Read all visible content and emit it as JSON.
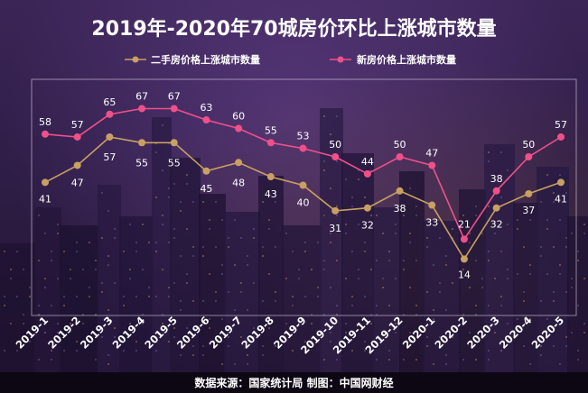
{
  "title": "2019年-2020年70城房价环比上涨城市数量",
  "source_text": "数据来源：国家统计局    制图：中国网财经",
  "chart_data": {
    "type": "line",
    "title": "2019年-2020年70城房价环比上涨城市数量",
    "categories": [
      "2019-1",
      "2019-2",
      "2019-3",
      "2019-4",
      "2019-5",
      "2019-6",
      "2019-7",
      "2019-8",
      "2019-9",
      "2019-10",
      "2019-11",
      "2019-12",
      "2020-1",
      "2020-2",
      "2020-3",
      "2020-4",
      "2020-5"
    ],
    "series": [
      {
        "name": "二手房价格上涨城市数量",
        "color": "#c9a062",
        "values": [
          41,
          47,
          57,
          55,
          55,
          45,
          48,
          43,
          40,
          31,
          32,
          38,
          33,
          14,
          32,
          37,
          41
        ]
      },
      {
        "name": "新房价格上涨城市数量",
        "color": "#f0508a",
        "values": [
          58,
          57,
          65,
          67,
          67,
          63,
          60,
          55,
          53,
          50,
          44,
          50,
          47,
          21,
          38,
          50,
          57
        ]
      }
    ],
    "ylim": [
      0,
      80
    ],
    "grid": false,
    "legend": "top"
  }
}
